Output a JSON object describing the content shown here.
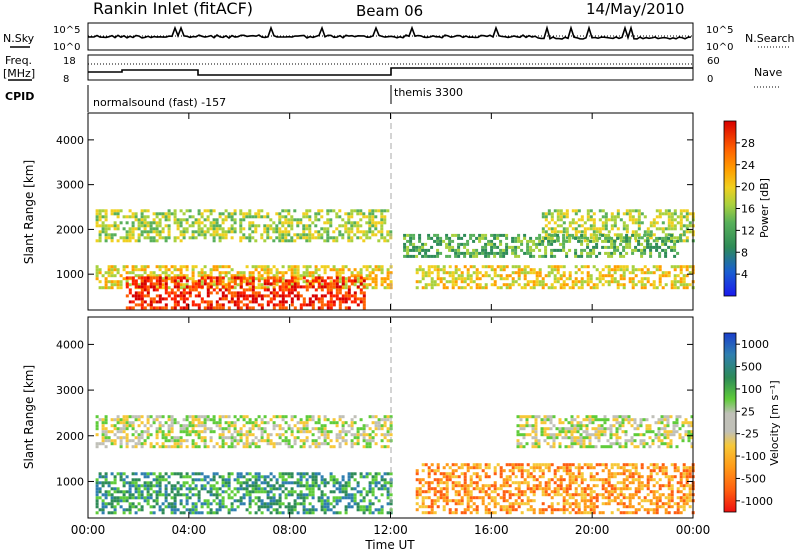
{
  "header": {
    "title": "Rankin Inlet (fitACF)",
    "beam": "Beam 06",
    "date": "14/May/2010"
  },
  "top_panels": {
    "nsky_label": "N.Sky",
    "nsky_ticks": [
      "10^5",
      "10^0"
    ],
    "nsearch_label": "N.Search",
    "nsearch_ticks": [
      "10^5",
      "10^0"
    ],
    "freq_label_1": "Freq.",
    "freq_label_2": "[MHz]",
    "freq_ticks": [
      "18",
      "8"
    ],
    "nave_label": "Nave",
    "nave_ticks": [
      "60",
      "0"
    ],
    "cpid_label": "CPID",
    "cpid_segments": [
      {
        "start_hour": 0,
        "label": "normalsound (fast) -157"
      },
      {
        "start_hour": 12,
        "label": "themis 3300"
      }
    ]
  },
  "chart_data": [
    {
      "type": "heatmap",
      "ylabel": "Slant Range [km]",
      "yticks": [
        "1000",
        "2000",
        "3000",
        "4000"
      ],
      "ylim": [
        200,
        4600
      ],
      "xlim": [
        0,
        24
      ],
      "colorbar": {
        "label": "Power [dB]",
        "ticks": [
          "4",
          "8",
          "12",
          "16",
          "20",
          "24",
          "28"
        ],
        "colors": [
          "#1a1aee",
          "#1a5fd0",
          "#2e8b57",
          "#58b05a",
          "#a8d13e",
          "#f0d020",
          "#ffa000",
          "#ff6000",
          "#ff2000",
          "#d80000"
        ]
      },
      "bands": [
        {
          "range_km": [
            1750,
            2450
          ],
          "hours": [
            [
              0.3,
              5.8
            ],
            [
              6.0,
              12.0
            ],
            [
              18.0,
              24.0
            ]
          ],
          "color_index": 4
        },
        {
          "range_km": [
            700,
            1200
          ],
          "hours": [
            [
              0.3,
              12.0
            ],
            [
              13.0,
              24.0
            ]
          ],
          "color_index": 5
        },
        {
          "range_km": [
            250,
            950
          ],
          "hours": [
            [
              1.5,
              11.0
            ]
          ],
          "color_index": 8
        },
        {
          "range_km": [
            1400,
            1900
          ],
          "hours": [
            [
              12.5,
              23.5
            ]
          ],
          "color_index": 3
        }
      ]
    },
    {
      "type": "heatmap",
      "ylabel": "Slant Range [km]",
      "yticks": [
        "1000",
        "2000",
        "3000",
        "4000"
      ],
      "ylim": [
        200,
        4600
      ],
      "xlim": [
        0,
        24
      ],
      "xticks": [
        "00:00",
        "04:00",
        "08:00",
        "12:00",
        "16:00",
        "20:00",
        "00:00"
      ],
      "xlabel": "Time UT",
      "colorbar": {
        "label": "Velocity [m s⁻¹]",
        "ticks": [
          "1000",
          "500",
          "100",
          "25",
          "-25",
          "-100",
          "-500",
          "-1000"
        ],
        "colors": [
          "#1a3fcc",
          "#2f7fb0",
          "#2e8b57",
          "#5fcc3a",
          "#c0c0b8",
          "#f7c838",
          "#ff9a18",
          "#ff5e10",
          "#ee1010"
        ]
      },
      "bands": [
        {
          "range_km": [
            1750,
            2450
          ],
          "hours": [
            [
              0.3,
              12.0
            ],
            [
              17.0,
              24.0
            ]
          ],
          "color_index": 4
        },
        {
          "range_km": [
            300,
            1200
          ],
          "hours": [
            [
              0.3,
              12.0
            ]
          ],
          "color_index": 2
        },
        {
          "range_km": [
            300,
            1400
          ],
          "hours": [
            [
              13.0,
              24.0
            ]
          ],
          "color_index": 6
        }
      ]
    }
  ]
}
